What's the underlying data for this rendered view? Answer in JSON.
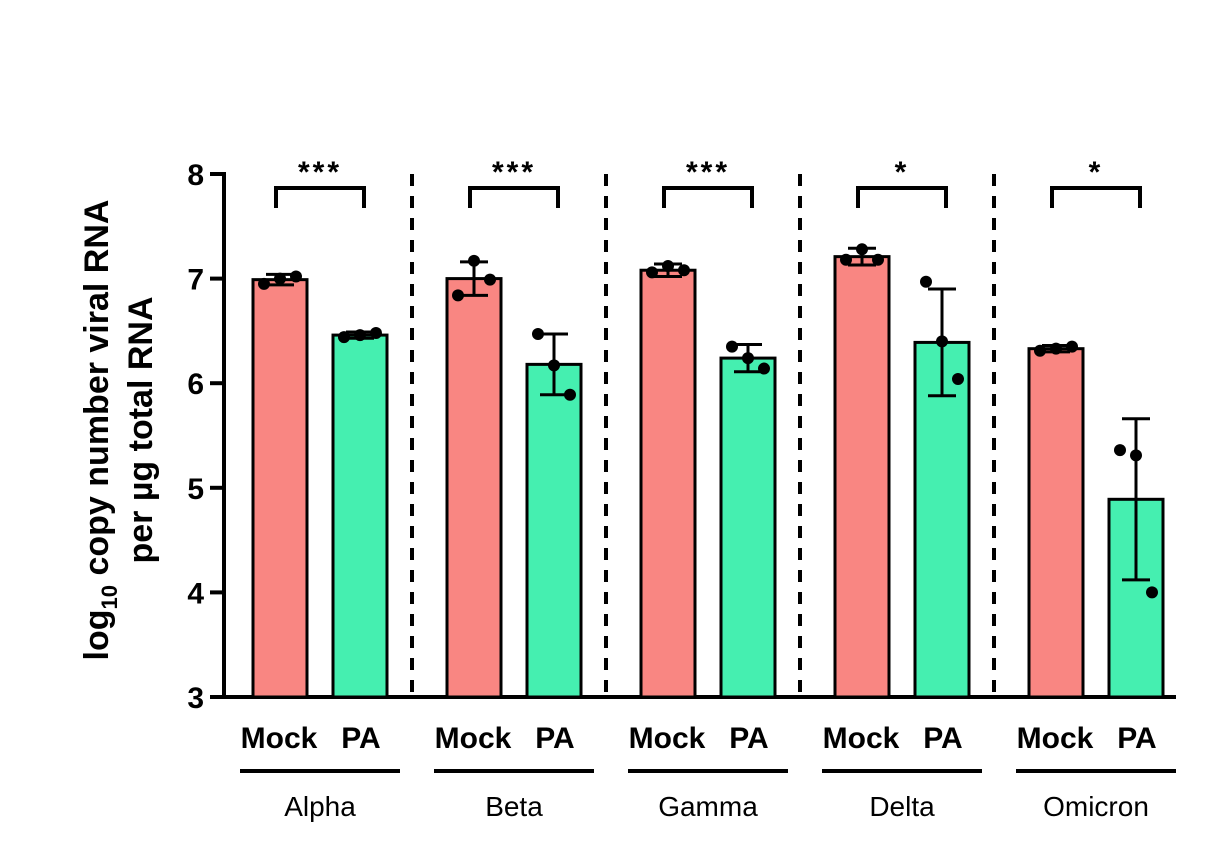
{
  "chart_data": {
    "type": "bar",
    "ylabel": {
      "line1_prefix": "log",
      "line1_subscript": "10",
      "line1_suffix": " copy number viral RNA",
      "line2": "per µg total RNA"
    },
    "ylim": [
      3,
      8
    ],
    "yticks": [
      "3",
      "4",
      "5",
      "6",
      "7",
      "8"
    ],
    "colors": {
      "Mock": "#f98682",
      "PA": "#45efb0"
    },
    "groups": [
      {
        "name": "Alpha",
        "significance": "***",
        "bars": [
          {
            "label": "Mock",
            "mean": 6.99,
            "error": 0.05,
            "points": [
              6.95,
              7.0,
              7.02
            ]
          },
          {
            "label": "PA",
            "mean": 6.46,
            "error": 0.03,
            "points": [
              6.44,
              6.46,
              6.48
            ]
          }
        ]
      },
      {
        "name": "Beta",
        "significance": "***",
        "bars": [
          {
            "label": "Mock",
            "mean": 7.0,
            "error": 0.16,
            "points": [
              6.84,
              7.17,
              6.99
            ]
          },
          {
            "label": "PA",
            "mean": 6.18,
            "error": 0.29,
            "points": [
              6.47,
              6.17,
              5.89
            ]
          }
        ]
      },
      {
        "name": "Gamma",
        "significance": "***",
        "bars": [
          {
            "label": "Mock",
            "mean": 7.08,
            "error": 0.06,
            "points": [
              7.06,
              7.12,
              7.08
            ]
          },
          {
            "label": "PA",
            "mean": 6.24,
            "error": 0.13,
            "points": [
              6.35,
              6.24,
              6.14
            ]
          }
        ]
      },
      {
        "name": "Delta",
        "significance": "*",
        "bars": [
          {
            "label": "Mock",
            "mean": 7.21,
            "error": 0.08,
            "points": [
              7.18,
              7.28,
              7.18
            ]
          },
          {
            "label": "PA",
            "mean": 6.39,
            "error": 0.51,
            "points": [
              6.97,
              6.4,
              6.04
            ]
          }
        ]
      },
      {
        "name": "Omicron",
        "significance": "*",
        "bars": [
          {
            "label": "Mock",
            "mean": 6.33,
            "error": 0.03,
            "points": [
              6.31,
              6.33,
              6.35
            ]
          },
          {
            "label": "PA",
            "mean": 4.89,
            "error": 0.77,
            "points": [
              5.36,
              5.31,
              4.0
            ]
          }
        ]
      }
    ]
  }
}
